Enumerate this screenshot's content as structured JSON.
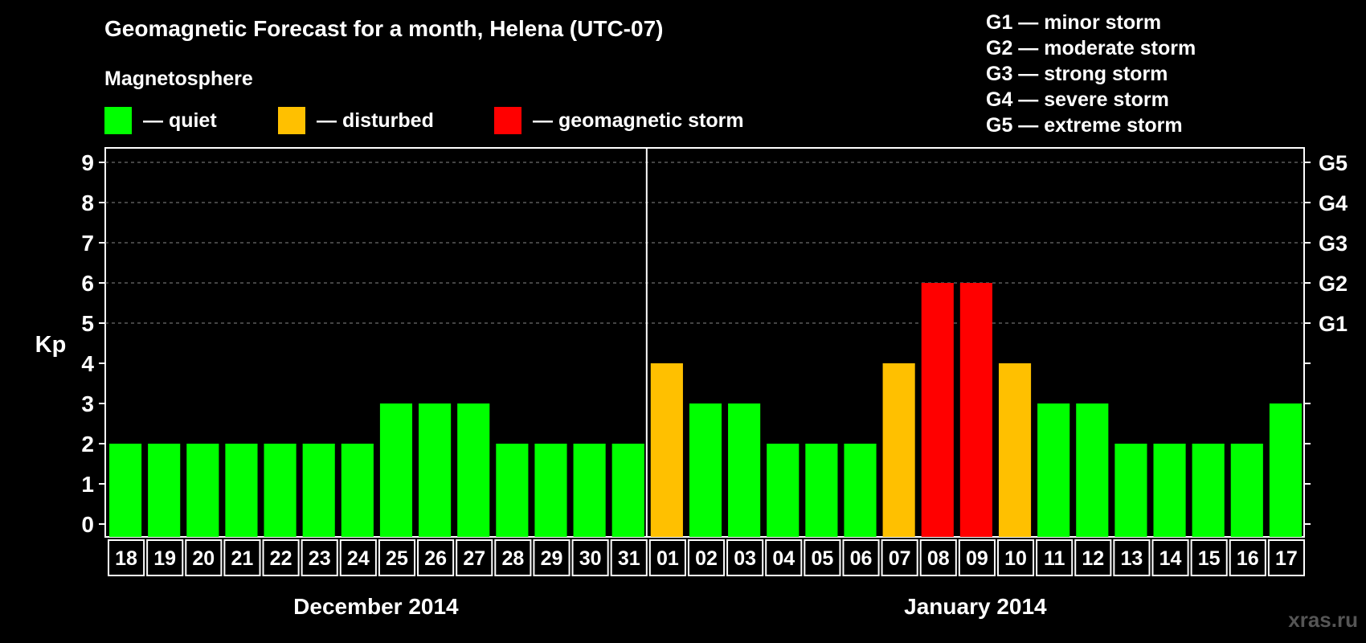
{
  "title": "Geomagnetic Forecast for a month, Helena (UTC-07)",
  "subtitle": "Magnetosphere",
  "legend": [
    {
      "label": "— quiet",
      "color": "#00ff00"
    },
    {
      "label": "— disturbed",
      "color": "#ffc000"
    },
    {
      "label": "— geomagnetic storm",
      "color": "#ff0000"
    }
  ],
  "storm_scale": [
    "G1 — minor storm",
    "G2 — moderate storm",
    "G3 — strong storm",
    "G4 — severe storm",
    "G5 — extreme storm"
  ],
  "watermark": "xras.ru",
  "chart_data": {
    "type": "bar",
    "title": "Geomagnetic Forecast for a month, Helena (UTC-07)",
    "ylabel": "Kp",
    "ylim": [
      0,
      9
    ],
    "yticks": [
      0,
      1,
      2,
      3,
      4,
      5,
      6,
      7,
      8,
      9
    ],
    "right_axis_labels": [
      {
        "kp": 5,
        "label": "G1"
      },
      {
        "kp": 6,
        "label": "G2"
      },
      {
        "kp": 7,
        "label": "G3"
      },
      {
        "kp": 8,
        "label": "G4"
      },
      {
        "kp": 9,
        "label": "G5"
      }
    ],
    "grid": "dashed lines at Kp 5-9",
    "categories": [
      "18",
      "19",
      "20",
      "21",
      "22",
      "23",
      "24",
      "25",
      "26",
      "27",
      "28",
      "29",
      "30",
      "31",
      "01",
      "02",
      "03",
      "04",
      "05",
      "06",
      "07",
      "08",
      "09",
      "10",
      "11",
      "12",
      "13",
      "14",
      "15",
      "16",
      "17"
    ],
    "values": [
      2,
      2,
      2,
      2,
      2,
      2,
      2,
      3,
      3,
      3,
      2,
      2,
      2,
      2,
      4,
      3,
      3,
      2,
      2,
      2,
      4,
      6,
      6,
      4,
      3,
      3,
      2,
      2,
      2,
      2,
      3
    ],
    "month_groups": [
      {
        "label": "December 2014",
        "count": 14
      },
      {
        "label": "January 2014",
        "count": 17
      }
    ],
    "color_rule": {
      "quiet": "Kp < 4",
      "disturbed": "Kp = 4",
      "geomagnetic storm": "Kp >= 5"
    }
  }
}
